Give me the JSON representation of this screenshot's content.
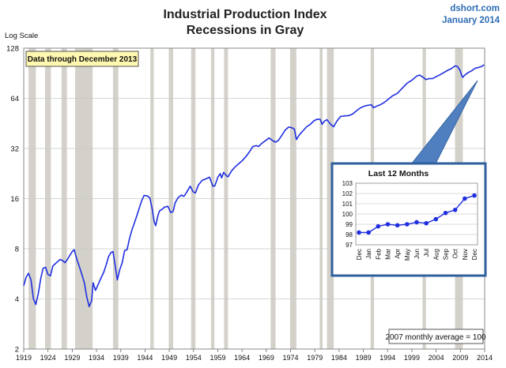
{
  "header": {
    "title_line1": "Industrial Production Index",
    "title_line2": "Recessions in Gray",
    "brand_site": "dshort.com",
    "brand_date": "January 2014",
    "y_axis_label": "Log Scale",
    "data_note": "Data through December 2013",
    "footnote": "2007 monthly average = 100"
  },
  "colors": {
    "line": "#1f2fe0",
    "recession": "#d3d1c9",
    "note_bg": "#fff8b0",
    "inset_border": "#2f5f9c",
    "callout": "#4f7fbf",
    "brand": "#2d6db5"
  },
  "chart_data": [
    {
      "type": "line",
      "title": "Industrial Production Index",
      "subtitle": "Recessions in Gray",
      "ylabel": "Log Scale",
      "y_scale": "log",
      "ylim": [
        2,
        128
      ],
      "xlim": [
        1919,
        2014
      ],
      "y_ticks": [
        "2",
        "4",
        "8",
        "16",
        "32",
        "64",
        "128"
      ],
      "y_tick_values": [
        2,
        4,
        8,
        16,
        32,
        64,
        128
      ],
      "x_ticks": [
        "1919",
        "1924",
        "1929",
        "1934",
        "1939",
        "1944",
        "1949",
        "1954",
        "1959",
        "1964",
        "1969",
        "1974",
        "1979",
        "1984",
        "1989",
        "1994",
        "1999",
        "2004",
        "2009",
        "2014"
      ],
      "grid": true,
      "recessions": [
        [
          1920.0,
          1921.5
        ],
        [
          1923.4,
          1924.6
        ],
        [
          1926.8,
          1927.9
        ],
        [
          1929.6,
          1933.2
        ],
        [
          1937.4,
          1938.5
        ],
        [
          1945.1,
          1945.8
        ],
        [
          1948.9,
          1949.8
        ],
        [
          1953.5,
          1954.4
        ],
        [
          1957.6,
          1958.3
        ],
        [
          1960.3,
          1961.1
        ],
        [
          1969.9,
          1970.9
        ],
        [
          1973.9,
          1975.2
        ],
        [
          1980.0,
          1980.6
        ],
        [
          1981.5,
          1982.9
        ],
        [
          1990.5,
          1991.2
        ],
        [
          2001.2,
          2001.9
        ],
        [
          2007.9,
          2009.5
        ]
      ],
      "series": [
        {
          "values": [
            [
              1919.0,
              4.8
            ],
            [
              1919.5,
              5.4
            ],
            [
              1920.0,
              5.7
            ],
            [
              1920.5,
              5.2
            ],
            [
              1921.0,
              4.0
            ],
            [
              1921.5,
              3.7
            ],
            [
              1922.0,
              4.3
            ],
            [
              1922.5,
              5.3
            ],
            [
              1923.0,
              6.1
            ],
            [
              1923.5,
              6.2
            ],
            [
              1924.0,
              5.6
            ],
            [
              1924.5,
              5.5
            ],
            [
              1925.0,
              6.3
            ],
            [
              1925.5,
              6.5
            ],
            [
              1926.0,
              6.7
            ],
            [
              1926.5,
              6.9
            ],
            [
              1927.0,
              6.8
            ],
            [
              1927.5,
              6.6
            ],
            [
              1928.0,
              6.9
            ],
            [
              1928.5,
              7.3
            ],
            [
              1929.0,
              7.7
            ],
            [
              1929.4,
              7.9
            ],
            [
              1929.9,
              7.0
            ],
            [
              1930.5,
              6.2
            ],
            [
              1931.0,
              5.6
            ],
            [
              1931.5,
              5.0
            ],
            [
              1932.0,
              4.1
            ],
            [
              1932.5,
              3.6
            ],
            [
              1933.0,
              3.9
            ],
            [
              1933.3,
              5.0
            ],
            [
              1933.8,
              4.5
            ],
            [
              1934.5,
              5.0
            ],
            [
              1935.0,
              5.4
            ],
            [
              1935.5,
              5.8
            ],
            [
              1936.0,
              6.4
            ],
            [
              1936.5,
              7.2
            ],
            [
              1937.0,
              7.6
            ],
            [
              1937.4,
              7.7
            ],
            [
              1937.9,
              6.2
            ],
            [
              1938.3,
              5.2
            ],
            [
              1938.8,
              6.0
            ],
            [
              1939.3,
              6.6
            ],
            [
              1939.8,
              7.8
            ],
            [
              1940.3,
              7.9
            ],
            [
              1940.8,
              9.2
            ],
            [
              1941.3,
              10.4
            ],
            [
              1941.8,
              11.4
            ],
            [
              1942.3,
              12.6
            ],
            [
              1942.8,
              14.0
            ],
            [
              1943.3,
              15.5
            ],
            [
              1943.8,
              16.7
            ],
            [
              1944.5,
              16.6
            ],
            [
              1945.0,
              16.1
            ],
            [
              1945.5,
              13.8
            ],
            [
              1945.9,
              11.6
            ],
            [
              1946.2,
              11.0
            ],
            [
              1946.7,
              12.8
            ],
            [
              1947.0,
              13.5
            ],
            [
              1947.5,
              13.8
            ],
            [
              1948.0,
              14.2
            ],
            [
              1948.7,
              14.4
            ],
            [
              1949.3,
              13.2
            ],
            [
              1949.8,
              13.4
            ],
            [
              1950.2,
              15.1
            ],
            [
              1950.8,
              16.2
            ],
            [
              1951.5,
              16.8
            ],
            [
              1952.0,
              16.5
            ],
            [
              1952.5,
              17.3
            ],
            [
              1953.3,
              19.0
            ],
            [
              1953.9,
              17.6
            ],
            [
              1954.4,
              17.3
            ],
            [
              1955.0,
              19.3
            ],
            [
              1955.8,
              20.6
            ],
            [
              1956.5,
              21.0
            ],
            [
              1957.3,
              21.5
            ],
            [
              1958.0,
              19.0
            ],
            [
              1958.4,
              19.1
            ],
            [
              1959.0,
              21.5
            ],
            [
              1959.5,
              22.6
            ],
            [
              1959.8,
              21.3
            ],
            [
              1960.2,
              23.0
            ],
            [
              1960.8,
              21.9
            ],
            [
              1961.1,
              21.6
            ],
            [
              1961.8,
              23.4
            ],
            [
              1962.5,
              24.7
            ],
            [
              1963.3,
              25.9
            ],
            [
              1964.0,
              27.0
            ],
            [
              1964.8,
              28.6
            ],
            [
              1965.5,
              30.5
            ],
            [
              1966.2,
              32.8
            ],
            [
              1966.9,
              33.3
            ],
            [
              1967.4,
              32.9
            ],
            [
              1968.0,
              34.2
            ],
            [
              1968.8,
              35.6
            ],
            [
              1969.6,
              37.0
            ],
            [
              1970.3,
              35.7
            ],
            [
              1970.9,
              34.9
            ],
            [
              1971.5,
              35.8
            ],
            [
              1972.2,
              38.4
            ],
            [
              1972.9,
              41.3
            ],
            [
              1973.6,
              43.0
            ],
            [
              1974.3,
              42.6
            ],
            [
              1974.8,
              41.7
            ],
            [
              1975.2,
              36.2
            ],
            [
              1975.8,
              38.6
            ],
            [
              1976.5,
              40.7
            ],
            [
              1977.3,
              43.2
            ],
            [
              1978.0,
              44.5
            ],
            [
              1978.8,
              46.9
            ],
            [
              1979.5,
              48.0
            ],
            [
              1980.1,
              47.8
            ],
            [
              1980.5,
              44.7
            ],
            [
              1981.0,
              46.8
            ],
            [
              1981.5,
              47.6
            ],
            [
              1982.3,
              44.5
            ],
            [
              1982.9,
              43.2
            ],
            [
              1983.5,
              46.5
            ],
            [
              1984.3,
              49.8
            ],
            [
              1985.2,
              50.2
            ],
            [
              1986.0,
              50.4
            ],
            [
              1986.8,
              51.5
            ],
            [
              1987.6,
              54.0
            ],
            [
              1988.4,
              56.1
            ],
            [
              1989.3,
              57.6
            ],
            [
              1990.2,
              58.3
            ],
            [
              1990.7,
              58.4
            ],
            [
              1991.1,
              56.2
            ],
            [
              1991.8,
              57.5
            ],
            [
              1992.5,
              58.6
            ],
            [
              1993.3,
              60.4
            ],
            [
              1994.1,
              63.0
            ],
            [
              1995.0,
              66.2
            ],
            [
              1996.0,
              68.5
            ],
            [
              1997.0,
              73.5
            ],
            [
              1998.0,
              78.8
            ],
            [
              1999.0,
              82.2
            ],
            [
              2000.0,
              87.1
            ],
            [
              2000.6,
              88.2
            ],
            [
              2001.4,
              85.2
            ],
            [
              2001.9,
              82.9
            ],
            [
              2002.5,
              84.0
            ],
            [
              2003.3,
              84.2
            ],
            [
              2004.0,
              86.3
            ],
            [
              2004.8,
              88.6
            ],
            [
              2005.6,
              91.5
            ],
            [
              2006.4,
              94.3
            ],
            [
              2007.2,
              96.8
            ],
            [
              2007.9,
              100.2
            ],
            [
              2008.4,
              99.4
            ],
            [
              2008.9,
              94.5
            ],
            [
              2009.3,
              87.3
            ],
            [
              2009.5,
              85.6
            ],
            [
              2009.9,
              88.2
            ],
            [
              2010.5,
              91.0
            ],
            [
              2011.3,
              93.6
            ],
            [
              2012.0,
              96.8
            ],
            [
              2012.8,
              98.2
            ],
            [
              2013.4,
              99.5
            ],
            [
              2013.9,
              101.8
            ]
          ]
        }
      ]
    },
    {
      "type": "line",
      "title": "Last 12 Months",
      "ylim": [
        97,
        103
      ],
      "y_ticks": [
        "97",
        "98",
        "99",
        "100",
        "101",
        "102",
        "103"
      ],
      "y_tick_values": [
        97,
        98,
        99,
        100,
        101,
        102,
        103
      ],
      "categories": [
        "Dec",
        "Jan",
        "Feb",
        "Mar",
        "Apr",
        "May",
        "Jun",
        "Jul",
        "Aug",
        "Sep",
        "Oct",
        "Nov",
        "Dec"
      ],
      "grid": true,
      "series": [
        {
          "values": [
            98.2,
            98.2,
            98.8,
            99.0,
            98.9,
            99.0,
            99.2,
            99.1,
            99.5,
            100.1,
            100.4,
            101.5,
            101.8
          ]
        }
      ]
    }
  ]
}
